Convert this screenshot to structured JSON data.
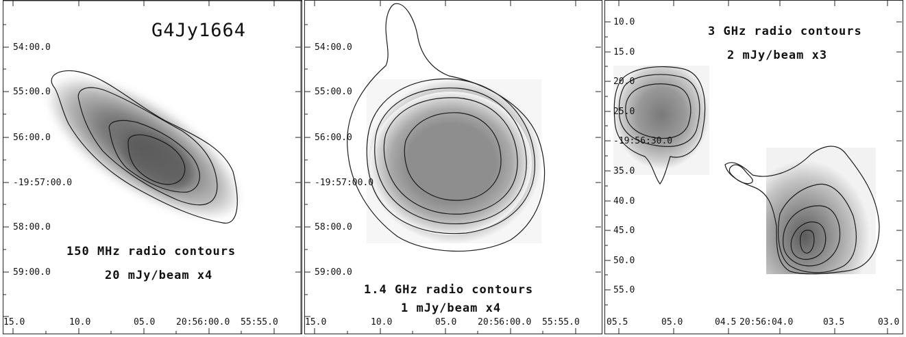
{
  "panels": [
    {
      "id": "p1",
      "source_name": "G4Jy1664",
      "caption": [
        "150 MHz radio contours",
        "20 mJy/beam x4"
      ],
      "y_labels": [
        "54:00.0",
        "55:00.0",
        "56:00.0",
        "-19:57:00.0",
        "58:00.0",
        "59:00.0"
      ],
      "x_labels": [
        "15.0",
        "10.0",
        "05.0",
        "20:56:00.0",
        "55:55.0"
      ]
    },
    {
      "id": "p2",
      "caption": [
        "1.4 GHz radio contours",
        "1 mJy/beam x4"
      ],
      "y_labels": [
        "54:00.0",
        "55:00.0",
        "56:00.0",
        "-19:57:00.0",
        "58:00.0",
        "59:00.0"
      ],
      "x_labels": [
        "15.0",
        "10.0",
        "05.0",
        "20:56:00.0",
        "55:55.0"
      ]
    },
    {
      "id": "p3",
      "caption": [
        "3 GHz radio contours",
        "2 mJy/beam x3"
      ],
      "y_labels": [
        "10.0",
        "15.0",
        "20.0",
        "25.0",
        "-19:56:30.0",
        "35.0",
        "40.0",
        "45.0",
        "50.0",
        "55.0"
      ],
      "x_labels": [
        "05.5",
        "05.0",
        "04.5",
        "20:56:04.0",
        "03.5",
        "03.0"
      ]
    }
  ],
  "colors": {
    "ink": "#1a1a1a",
    "emission_dark": "#666666",
    "background": "#ffffff"
  }
}
